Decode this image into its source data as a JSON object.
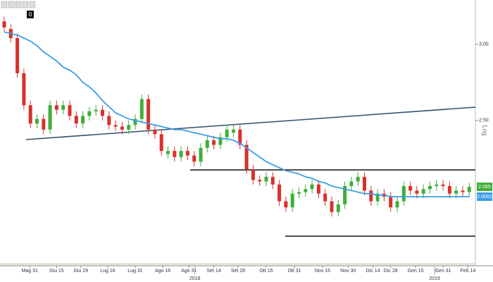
{
  "toolbar": {
    "badge": 0
  },
  "chart_data": {
    "type": "candlestick",
    "axis_label": "Log",
    "up_color": "#3fae3a",
    "down_color": "#d9302c",
    "open": [
      3.15,
      3.1,
      3.04,
      2.81,
      2.6,
      2.48,
      2.51,
      2.44,
      2.6,
      2.57,
      2.6,
      2.53,
      2.48,
      2.53,
      2.56,
      2.57,
      2.53,
      2.47,
      2.46,
      2.44,
      2.47,
      2.51,
      2.64,
      2.44,
      2.41,
      2.28,
      2.3,
      2.26,
      2.3,
      2.27,
      2.23,
      2.32,
      2.37,
      2.34,
      2.39,
      2.42,
      2.44,
      2.34,
      2.18,
      2.11,
      2.1,
      2.13,
      2.08,
      1.97,
      1.93,
      2.02,
      2.03,
      2.05,
      2.08,
      2.02,
      1.97,
      1.9,
      1.95,
      2.07,
      2.1,
      2.13,
      2.04,
      1.97,
      2.02,
      2.0,
      1.93,
      1.97,
      2.07,
      2.04,
      2.02,
      2.05,
      2.07,
      2.08,
      2.07,
      2.02,
      2.04,
      2.03
    ],
    "high": [
      3.18,
      3.13,
      3.07,
      2.84,
      2.63,
      2.54,
      2.54,
      2.63,
      2.63,
      2.63,
      2.63,
      2.56,
      2.56,
      2.59,
      2.6,
      2.6,
      2.56,
      2.5,
      2.49,
      2.5,
      2.54,
      2.67,
      2.67,
      2.47,
      2.44,
      2.33,
      2.33,
      2.33,
      2.33,
      2.3,
      2.35,
      2.4,
      2.4,
      2.42,
      2.47,
      2.47,
      2.47,
      2.37,
      2.21,
      2.14,
      2.16,
      2.16,
      2.11,
      2.0,
      2.05,
      2.06,
      2.08,
      2.11,
      2.11,
      2.05,
      2.0,
      1.98,
      2.1,
      2.13,
      2.16,
      2.16,
      2.07,
      2.05,
      2.05,
      2.03,
      2.0,
      2.1,
      2.1,
      2.07,
      2.08,
      2.1,
      2.11,
      2.11,
      2.1,
      2.07,
      2.07,
      2.09
    ],
    "low": [
      3.08,
      3.01,
      2.78,
      2.57,
      2.45,
      2.45,
      2.41,
      2.41,
      2.54,
      2.54,
      2.5,
      2.45,
      2.45,
      2.5,
      2.53,
      2.5,
      2.44,
      2.43,
      2.41,
      2.41,
      2.44,
      2.48,
      2.41,
      2.38,
      2.27,
      2.25,
      2.23,
      2.23,
      2.24,
      2.2,
      2.2,
      2.29,
      2.31,
      2.31,
      2.36,
      2.39,
      2.31,
      2.15,
      2.08,
      2.07,
      2.07,
      2.05,
      1.94,
      1.9,
      1.9,
      1.99,
      2.0,
      2.02,
      1.99,
      1.94,
      1.87,
      1.87,
      1.92,
      2.04,
      2.07,
      2.01,
      1.94,
      1.94,
      1.97,
      1.9,
      1.9,
      1.94,
      2.01,
      1.99,
      1.99,
      2.02,
      2.04,
      2.04,
      1.99,
      1.99,
      2.0,
      2.0
    ],
    "close": [
      3.11,
      3.04,
      2.81,
      2.6,
      2.48,
      2.51,
      2.44,
      2.6,
      2.57,
      2.6,
      2.53,
      2.48,
      2.53,
      2.56,
      2.57,
      2.53,
      2.47,
      2.46,
      2.44,
      2.47,
      2.51,
      2.64,
      2.44,
      2.41,
      2.3,
      2.3,
      2.26,
      2.3,
      2.27,
      2.23,
      2.32,
      2.37,
      2.34,
      2.39,
      2.44,
      2.44,
      2.34,
      2.18,
      2.11,
      2.1,
      2.13,
      2.08,
      1.97,
      1.93,
      2.02,
      2.03,
      2.05,
      2.08,
      2.02,
      1.97,
      1.9,
      1.95,
      2.07,
      2.1,
      2.13,
      2.04,
      1.97,
      2.02,
      2.0,
      1.93,
      1.97,
      2.07,
      2.04,
      2.02,
      2.05,
      2.07,
      2.08,
      2.07,
      2.02,
      2.04,
      2.03,
      2.065
    ],
    "moving_average": {
      "color": "#3a9ee4",
      "values": [
        3.08,
        3.07,
        3.06,
        3.04,
        3.02,
        2.99,
        2.95,
        2.92,
        2.89,
        2.85,
        2.83,
        2.8,
        2.75,
        2.72,
        2.68,
        2.63,
        2.59,
        2.55,
        2.53,
        2.51,
        2.5,
        2.49,
        2.48,
        2.47,
        2.46,
        2.45,
        2.44,
        2.44,
        2.43,
        2.42,
        2.41,
        2.4,
        2.39,
        2.38,
        2.38,
        2.37,
        2.35,
        2.32,
        2.29,
        2.26,
        2.23,
        2.21,
        2.19,
        2.17,
        2.16,
        2.15,
        2.13,
        2.12,
        2.1,
        2.09,
        2.07,
        2.06,
        2.05,
        2.04,
        2.03,
        2.02,
        2.02,
        2.01,
        2.01,
        2.0,
        2.0,
        2.0,
        2.0,
        2.0,
        2.0,
        2.0,
        2.0,
        2.0,
        2.0,
        2.0,
        2.0,
        2.0001
      ]
    },
    "ylim": [
      1.57,
      3.29
    ],
    "yticks": [
      {
        "value": 3,
        "label": "3.00"
      },
      {
        "value": 2.5,
        "label": "2.50"
      }
    ],
    "xticks": [
      {
        "value": 3.9,
        "label": "Mag 31"
      },
      {
        "value": 8,
        "label": "Giu 15"
      },
      {
        "value": 11.7,
        "label": "Giu 29"
      },
      {
        "value": 15.8,
        "label": "Lug 16"
      },
      {
        "value": 20,
        "label": "Lug 31"
      },
      {
        "value": 24.2,
        "label": "Ago 16"
      },
      {
        "value": 28.2,
        "label": "Ago 31"
      },
      {
        "value": 32,
        "label": "Set 14"
      },
      {
        "value": 35.7,
        "label": "Set 28"
      },
      {
        "value": 40,
        "label": "Ott 15"
      },
      {
        "value": 44.3,
        "label": "Ott 31"
      },
      {
        "value": 48.6,
        "label": "Nov 15"
      },
      {
        "value": 52.5,
        "label": "Nov 30"
      },
      {
        "value": 56.3,
        "label": "Dic 14"
      },
      {
        "value": 59,
        "label": "Dic 28"
      },
      {
        "value": 62.8,
        "label": "Gen 15"
      },
      {
        "value": 67,
        "label": "Gen 31"
      },
      {
        "value": 70.8,
        "label": "Feb 14"
      }
    ],
    "year_ticks": [
      {
        "value": 29.1,
        "label": "2018"
      },
      {
        "value": 65.7,
        "label": "2019"
      }
    ]
  }
}
